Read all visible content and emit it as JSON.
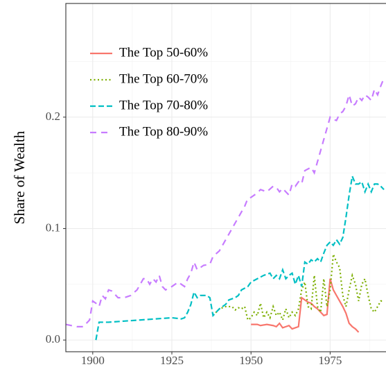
{
  "chart_data": {
    "type": "line",
    "y_label": "Share of Wealth",
    "xlim": [
      1891.5,
      1994.4
    ],
    "xticks": [
      1900,
      1925,
      1950,
      1975
    ],
    "ylim": [
      -0.0105,
      0.302
    ],
    "yticks": [
      {
        "value": 0,
        "label": "0.0"
      },
      0.1,
      0.2
    ],
    "grid": true,
    "legend": "top-left",
    "series": [
      {
        "name": "The Top 50-60%",
        "color": "#F8766D",
        "dash": "solid",
        "x": [
          1950,
          1952,
          1953,
          1955,
          1957,
          1958,
          1959,
          1960,
          1961,
          1962,
          1963,
          1964,
          1965,
          1966,
          1967,
          1968,
          1969,
          1970,
          1971,
          1972,
          1973,
          1974,
          1975,
          1976,
          1977,
          1978,
          1979,
          1980,
          1981,
          1982,
          1983,
          1984
        ],
        "values": [
          0.014,
          0.014,
          0.013,
          0.014,
          0.013,
          0.012,
          0.015,
          0.011,
          0.012,
          0.013,
          0.01,
          0.011,
          0.012,
          0.038,
          0.036,
          0.034,
          0.033,
          0.03,
          0.028,
          0.025,
          0.022,
          0.023,
          0.055,
          0.045,
          0.04,
          0.035,
          0.03,
          0.024,
          0.015,
          0.012,
          0.01,
          0.007
        ]
      },
      {
        "name": "The Top 60-70%",
        "color": "#7CAE00",
        "dash": "dotted",
        "x": [
          1938,
          1939,
          1940,
          1942,
          1944,
          1945,
          1946,
          1947,
          1948,
          1949,
          1950,
          1951,
          1952,
          1953,
          1954,
          1955,
          1956,
          1957,
          1958,
          1959,
          1960,
          1961,
          1962,
          1963,
          1964,
          1965,
          1966,
          1967,
          1968,
          1969,
          1970,
          1971,
          1972,
          1973,
          1974,
          1975,
          1976,
          1977,
          1978,
          1979,
          1980,
          1981,
          1982,
          1983,
          1984,
          1985,
          1986,
          1987,
          1988,
          1989,
          1990,
          1991,
          1992
        ],
        "values": [
          0.022,
          0.025,
          0.028,
          0.03,
          0.03,
          0.027,
          0.029,
          0.028,
          0.03,
          0.018,
          0.02,
          0.025,
          0.022,
          0.033,
          0.02,
          0.025,
          0.02,
          0.03,
          0.022,
          0.025,
          0.018,
          0.028,
          0.02,
          0.025,
          0.022,
          0.028,
          0.045,
          0.052,
          0.03,
          0.028,
          0.058,
          0.03,
          0.025,
          0.055,
          0.03,
          0.045,
          0.077,
          0.07,
          0.065,
          0.04,
          0.03,
          0.045,
          0.058,
          0.05,
          0.035,
          0.05,
          0.055,
          0.04,
          0.028,
          0.025,
          0.03,
          0.035,
          0.035
        ]
      },
      {
        "name": "The Top 70-80%",
        "color": "#00BFC4",
        "dash": "dashed",
        "x": [
          1901,
          1902,
          1905,
          1910,
          1915,
          1920,
          1925,
          1928,
          1929,
          1930,
          1931,
          1932,
          1933,
          1934,
          1936,
          1937,
          1938,
          1939,
          1940,
          1942,
          1943,
          1945,
          1946,
          1947,
          1949,
          1950,
          1952,
          1954,
          1956,
          1957,
          1958,
          1959,
          1960,
          1961,
          1962,
          1963,
          1964,
          1965,
          1966,
          1967,
          1968,
          1969,
          1970,
          1971,
          1972,
          1973,
          1974,
          1975,
          1976,
          1977,
          1978,
          1979,
          1980,
          1981,
          1982,
          1983,
          1984,
          1985,
          1986,
          1987,
          1988,
          1989,
          1990,
          1991,
          1992
        ],
        "values": [
          0.0,
          0.016,
          0.016,
          0.017,
          0.018,
          0.019,
          0.02,
          0.019,
          0.02,
          0.025,
          0.032,
          0.043,
          0.038,
          0.04,
          0.04,
          0.038,
          0.022,
          0.025,
          0.028,
          0.032,
          0.036,
          0.038,
          0.04,
          0.045,
          0.048,
          0.052,
          0.055,
          0.058,
          0.06,
          0.055,
          0.058,
          0.055,
          0.063,
          0.055,
          0.058,
          0.06,
          0.05,
          0.058,
          0.048,
          0.07,
          0.068,
          0.072,
          0.07,
          0.073,
          0.07,
          0.078,
          0.085,
          0.088,
          0.085,
          0.09,
          0.086,
          0.092,
          0.11,
          0.13,
          0.147,
          0.14,
          0.14,
          0.142,
          0.133,
          0.14,
          0.133,
          0.14,
          0.14,
          0.138,
          0.135
        ]
      },
      {
        "name": "The Top 80-90%",
        "color": "#C77CFF",
        "dash": "longdash",
        "x": [
          1891.5,
          1895,
          1897,
          1899,
          1900,
          1901,
          1902,
          1903,
          1904,
          1905,
          1906,
          1908,
          1910,
          1912,
          1914,
          1916,
          1917,
          1918,
          1919,
          1920,
          1921,
          1922,
          1923,
          1925,
          1927,
          1929,
          1930,
          1931,
          1932,
          1933,
          1935,
          1937,
          1938,
          1940,
          1942,
          1944,
          1946,
          1948,
          1949,
          1950,
          1952,
          1953,
          1955,
          1957,
          1958,
          1959,
          1960,
          1962,
          1963,
          1964,
          1965,
          1966,
          1967,
          1969,
          1970,
          1971,
          1972,
          1973,
          1974,
          1975,
          1976,
          1977,
          1978,
          1979,
          1980,
          1981,
          1982,
          1983,
          1984,
          1985,
          1986,
          1987,
          1988,
          1989,
          1990,
          1991,
          1992
        ],
        "values": [
          0.014,
          0.012,
          0.012,
          0.018,
          0.035,
          0.033,
          0.03,
          0.04,
          0.037,
          0.045,
          0.044,
          0.038,
          0.038,
          0.04,
          0.045,
          0.055,
          0.055,
          0.05,
          0.055,
          0.052,
          0.058,
          0.048,
          0.045,
          0.048,
          0.052,
          0.048,
          0.055,
          0.06,
          0.07,
          0.063,
          0.067,
          0.068,
          0.075,
          0.08,
          0.09,
          0.1,
          0.11,
          0.12,
          0.127,
          0.128,
          0.132,
          0.135,
          0.133,
          0.138,
          0.137,
          0.133,
          0.136,
          0.13,
          0.14,
          0.138,
          0.142,
          0.14,
          0.152,
          0.155,
          0.15,
          0.16,
          0.17,
          0.18,
          0.19,
          0.2,
          0.198,
          0.197,
          0.203,
          0.205,
          0.21,
          0.22,
          0.21,
          0.212,
          0.218,
          0.215,
          0.22,
          0.218,
          0.215,
          0.225,
          0.22,
          0.228,
          0.235
        ]
      }
    ]
  }
}
